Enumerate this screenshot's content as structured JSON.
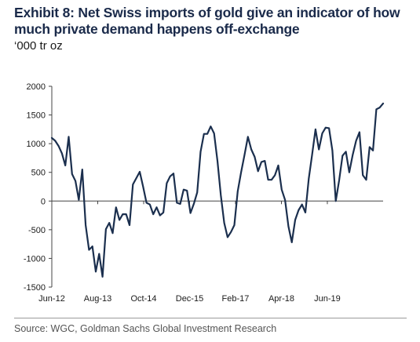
{
  "title": "Exhibit 8: Net Swiss imports of gold give an indicator of how much private demand happens off-exchange",
  "subtitle": "‘000 tr oz",
  "source": "Source: WGC, Goldman Sachs Global Investment Research",
  "colors": {
    "line": "#1b2f4e",
    "axis": "#444444",
    "title": "#1a2a4a"
  },
  "chart_data": {
    "type": "line",
    "title": "Exhibit 8: Net Swiss imports of gold give an indicator of how much private demand happens off-exchange",
    "ylabel": "‘000 tr oz",
    "xlabel": "",
    "ylim": [
      -1500,
      2000
    ],
    "yticks": [
      -1500,
      -1000,
      -500,
      0,
      500,
      1000,
      1500,
      2000
    ],
    "x_start": "2012-06",
    "xlim": [
      "2012-06",
      "2020-11"
    ],
    "xtick_labels": [
      "Jun-12",
      "Aug-13",
      "Oct-14",
      "Dec-15",
      "Feb-17",
      "Apr-18",
      "Jun-19"
    ],
    "xtick_dates": [
      "2012-06",
      "2013-08",
      "2014-10",
      "2015-12",
      "2017-02",
      "2018-04",
      "2019-06"
    ],
    "grid": false,
    "legend": "none",
    "series": [
      {
        "name": "",
        "values": [
          1100,
          1050,
          960,
          830,
          620,
          1120,
          470,
          350,
          20,
          550,
          -420,
          -850,
          -790,
          -1230,
          -920,
          -1320,
          -490,
          -380,
          -560,
          -110,
          -330,
          -230,
          -230,
          -420,
          290,
          400,
          510,
          250,
          -30,
          -60,
          -230,
          -110,
          -250,
          -200,
          310,
          430,
          480,
          -30,
          -50,
          200,
          180,
          -210,
          -50,
          150,
          860,
          1170,
          1170,
          1300,
          1180,
          700,
          100,
          -380,
          -630,
          -540,
          -420,
          170,
          500,
          800,
          1120,
          900,
          770,
          520,
          680,
          700,
          370,
          370,
          450,
          620,
          200,
          20,
          -440,
          -720,
          -330,
          -160,
          -60,
          -200,
          390,
          810,
          1250,
          900,
          1180,
          1280,
          1270,
          880,
          0,
          360,
          790,
          860,
          500,
          800,
          1050,
          1200,
          450,
          370,
          940,
          880,
          1600,
          1630,
          1700
        ]
      }
    ]
  }
}
